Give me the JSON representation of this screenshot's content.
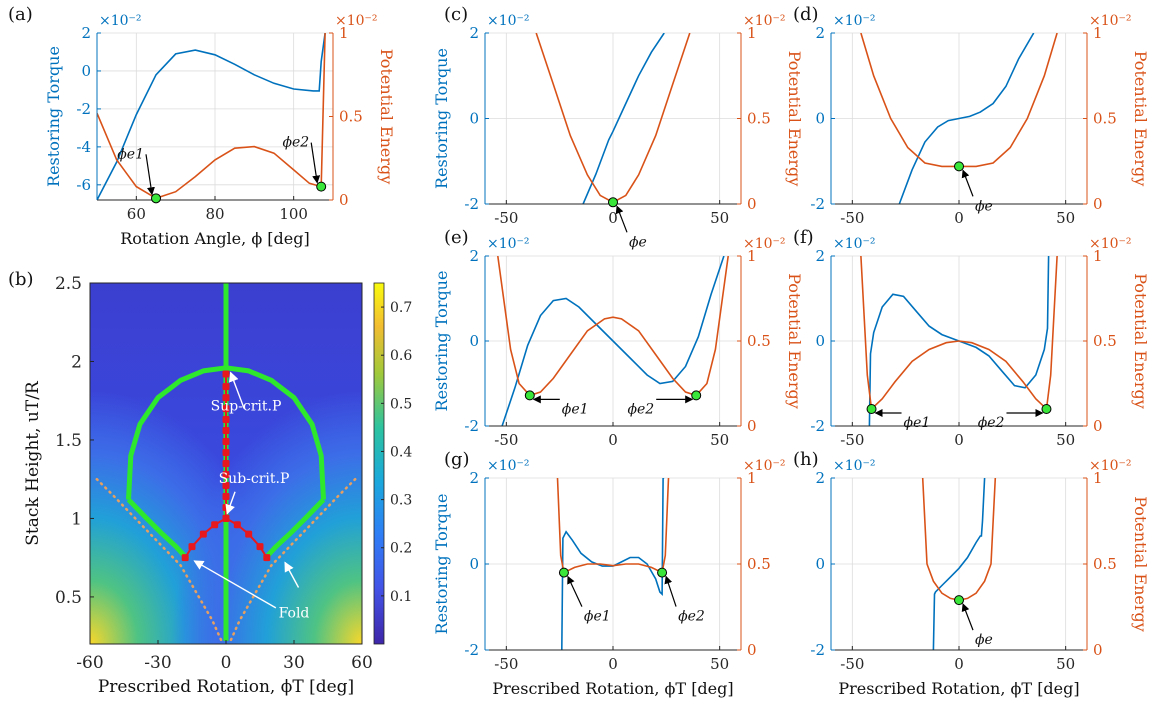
{
  "colors": {
    "torque": "#0072BD",
    "energy": "#D95319",
    "marker_fill": "#39e639",
    "branch_green": "#2ee82e",
    "branch_red": "#e8191e",
    "fold_dots": "#e8a060"
  },
  "chart_data": [
    {
      "id": "a",
      "panel_label": "(a)",
      "type": "line",
      "xlabel": "Rotation Angle, ϕ [deg]",
      "ylabel_left": "Restoring Torque",
      "ylabel_right": "Potential Energy",
      "left_scale": "×10⁻²",
      "right_scale": "×10⁻²",
      "xlim": [
        50,
        110
      ],
      "ylim_left": [
        -6.8,
        2
      ],
      "ylim_right": [
        0,
        1
      ],
      "xticks": [
        60,
        80,
        100
      ],
      "yticks_left": [
        -6,
        -4,
        -2,
        0,
        2
      ],
      "yticks_right": [
        0,
        0.5,
        1
      ],
      "series": [
        {
          "axis": "left",
          "x": [
            50,
            55,
            60,
            65,
            70,
            75,
            80,
            85,
            90,
            95,
            100,
            105,
            106.5,
            107,
            108
          ],
          "y": [
            -6.8,
            -4.8,
            -2.3,
            -0.2,
            0.9,
            1.1,
            0.85,
            0.35,
            -0.2,
            -0.65,
            -0.95,
            -1.05,
            -1.05,
            0.5,
            2
          ]
        },
        {
          "axis": "right",
          "x": [
            50,
            55,
            60,
            65,
            70,
            75,
            80,
            85,
            90,
            95,
            100,
            104,
            107,
            108
          ],
          "y": [
            0.52,
            0.24,
            0.08,
            0.01,
            0.05,
            0.14,
            0.24,
            0.31,
            0.32,
            0.28,
            0.18,
            0.1,
            0.08,
            1.0
          ]
        }
      ],
      "markers": [
        {
          "x": 65,
          "y": 0.01,
          "axis": "right",
          "label": "ϕe1"
        },
        {
          "x": 107,
          "y": 0.08,
          "axis": "right",
          "label": "ϕe2"
        }
      ]
    },
    {
      "id": "b",
      "panel_label": "(b)",
      "type": "heatmap",
      "xlabel": "Prescribed Rotation, ϕT [deg]",
      "ylabel": "Stack Height, uT/R",
      "xlim": [
        -60,
        60
      ],
      "ylim": [
        0.2,
        2.5
      ],
      "xticks": [
        -60,
        -30,
        0,
        30,
        60
      ],
      "yticks": [
        0.5,
        1,
        1.5,
        2,
        2.5
      ],
      "colorbar_ticks": [
        0.1,
        0.2,
        0.3,
        0.4,
        0.5,
        0.6,
        0.7
      ],
      "colorbar_range": [
        0,
        0.75
      ],
      "stable_branches": [
        {
          "x": [
            0,
            0
          ],
          "y": [
            0.22,
            2.5
          ]
        },
        {
          "x": [
            -43,
            -42,
            -38,
            -30,
            -20,
            -10,
            0,
            10,
            20,
            30,
            38,
            42,
            43
          ],
          "y": [
            1.12,
            1.4,
            1.6,
            1.77,
            1.88,
            1.94,
            1.96,
            1.94,
            1.88,
            1.77,
            1.6,
            1.4,
            1.12
          ]
        },
        {
          "x": [
            -43,
            -35,
            -28,
            -22,
            -17
          ],
          "y": [
            1.12,
            1.0,
            0.9,
            0.82,
            0.74
          ]
        },
        {
          "x": [
            43,
            35,
            28,
            22,
            17
          ],
          "y": [
            1.12,
            1.0,
            0.9,
            0.82,
            0.74
          ]
        }
      ],
      "unstable_branches": [
        {
          "x": [
            0,
            0,
            0,
            0,
            0,
            0,
            0,
            0,
            0,
            0,
            0,
            0,
            0,
            0
          ],
          "y": [
            1.0,
            1.07,
            1.14,
            1.21,
            1.28,
            1.35,
            1.42,
            1.49,
            1.56,
            1.63,
            1.7,
            1.77,
            1.84,
            1.92
          ]
        },
        {
          "x": [
            0,
            -5,
            -10,
            -15,
            -18
          ],
          "y": [
            1.0,
            0.96,
            0.9,
            0.82,
            0.75
          ]
        },
        {
          "x": [
            0,
            5,
            10,
            15,
            18
          ],
          "y": [
            1.0,
            0.96,
            0.9,
            0.82,
            0.75
          ]
        }
      ],
      "fold_lines": [
        {
          "x": [
            -57,
            -50,
            -40,
            -30,
            -20,
            -12,
            -6,
            -2
          ],
          "y": [
            1.25,
            1.15,
            1.0,
            0.85,
            0.7,
            0.5,
            0.35,
            0.22
          ]
        },
        {
          "x": [
            57,
            50,
            40,
            30,
            20,
            12,
            6,
            2
          ],
          "y": [
            1.25,
            1.15,
            1.0,
            0.85,
            0.7,
            0.5,
            0.35,
            0.22
          ]
        }
      ],
      "annotations": [
        "Sup-crit.P",
        "Sub-crit.P",
        "Fold"
      ]
    },
    {
      "id": "c",
      "panel_label": "(c)",
      "type": "line",
      "ylabel_left": "Restoring Torque",
      "ylabel_right": "Potential Energy",
      "left_scale": "×10⁻²",
      "right_scale": "×10⁻²",
      "xlim": [
        -60,
        60
      ],
      "ylim_left": [
        -2,
        2
      ],
      "ylim_right": [
        0,
        1
      ],
      "xticks": [
        -50,
        0,
        50
      ],
      "yticks_left": [
        -2,
        0,
        2
      ],
      "yticks_right": [
        0,
        0.5,
        1
      ],
      "series": [
        {
          "axis": "left",
          "x": [
            -14,
            -8,
            -2,
            0,
            6,
            12,
            18,
            24
          ],
          "y": [
            -2,
            -1.3,
            -0.5,
            -0.3,
            0.35,
            1.0,
            1.55,
            2
          ]
        },
        {
          "axis": "right",
          "x": [
            -36,
            -28,
            -20,
            -12,
            -6,
            0,
            6,
            12,
            20,
            28,
            36
          ],
          "y": [
            1.0,
            0.7,
            0.4,
            0.17,
            0.05,
            0.01,
            0.05,
            0.17,
            0.4,
            0.7,
            1.0
          ]
        }
      ],
      "markers": [
        {
          "x": 0,
          "y": 0.01,
          "axis": "right",
          "label": "ϕe"
        }
      ]
    },
    {
      "id": "d",
      "panel_label": "(d)",
      "type": "line",
      "ylabel_right": "Potential Energy",
      "left_scale": "×10⁻²",
      "right_scale": "×10⁻²",
      "xlim": [
        -60,
        60
      ],
      "ylim_left": [
        -2,
        2
      ],
      "ylim_right": [
        0,
        1
      ],
      "xticks": [
        -50,
        0,
        50
      ],
      "yticks_left": [
        -2,
        0,
        2
      ],
      "yticks_right": [
        0,
        0.5,
        1
      ],
      "series": [
        {
          "axis": "left",
          "x": [
            -28,
            -22,
            -16,
            -10,
            -5,
            0,
            5,
            10,
            16,
            22,
            28,
            35
          ],
          "y": [
            -2,
            -1.2,
            -0.55,
            -0.2,
            -0.05,
            0,
            0.05,
            0.15,
            0.35,
            0.75,
            1.4,
            2
          ]
        },
        {
          "axis": "right",
          "x": [
            -46,
            -40,
            -32,
            -24,
            -16,
            -8,
            0,
            8,
            16,
            24,
            32,
            40,
            46
          ],
          "y": [
            1.0,
            0.75,
            0.5,
            0.33,
            0.24,
            0.22,
            0.22,
            0.22,
            0.24,
            0.33,
            0.5,
            0.75,
            1.0
          ]
        }
      ],
      "markers": [
        {
          "x": 0,
          "y": 0.22,
          "axis": "right",
          "label": "ϕe"
        }
      ]
    },
    {
      "id": "e",
      "panel_label": "(e)",
      "type": "line",
      "ylabel_left": "Restoring Torque",
      "ylabel_right": "Potential Energy",
      "left_scale": "×10⁻²",
      "right_scale": "×10⁻²",
      "xlim": [
        -60,
        60
      ],
      "ylim_left": [
        -2,
        2
      ],
      "ylim_right": [
        0,
        1
      ],
      "xticks": [
        -50,
        0,
        50
      ],
      "yticks_left": [
        -2,
        0,
        2
      ],
      "yticks_right": [
        0,
        0.5,
        1
      ],
      "series": [
        {
          "axis": "left",
          "x": [
            -52,
            -46,
            -40,
            -34,
            -28,
            -22,
            -16,
            -8,
            0,
            8,
            16,
            22,
            28,
            34,
            40,
            46,
            52
          ],
          "y": [
            -2,
            -1.1,
            -0.1,
            0.6,
            0.95,
            1.0,
            0.8,
            0.4,
            0,
            -0.4,
            -0.8,
            -1.0,
            -0.95,
            -0.6,
            0.1,
            1.1,
            2
          ]
        },
        {
          "axis": "right",
          "x": [
            -54,
            -48,
            -44,
            -39,
            -34,
            -28,
            -20,
            -12,
            -4,
            0,
            4,
            12,
            20,
            28,
            34,
            39,
            44,
            48,
            54
          ],
          "y": [
            1.0,
            0.45,
            0.25,
            0.18,
            0.2,
            0.28,
            0.42,
            0.56,
            0.63,
            0.64,
            0.63,
            0.56,
            0.42,
            0.28,
            0.2,
            0.18,
            0.25,
            0.45,
            1.0
          ]
        }
      ],
      "markers": [
        {
          "x": -39,
          "y": 0.18,
          "axis": "right",
          "label": "ϕe1"
        },
        {
          "x": 39,
          "y": 0.18,
          "axis": "right",
          "label": "ϕe2"
        }
      ]
    },
    {
      "id": "f",
      "panel_label": "(f)",
      "type": "line",
      "ylabel_right": "Potential Energy",
      "left_scale": "×10⁻²",
      "right_scale": "×10⁻²",
      "xlim": [
        -60,
        60
      ],
      "ylim_left": [
        -2,
        2
      ],
      "ylim_right": [
        0,
        1
      ],
      "xticks": [
        -50,
        0,
        50
      ],
      "yticks_left": [
        -2,
        0,
        2
      ],
      "yticks_right": [
        0,
        0.5,
        1
      ],
      "series": [
        {
          "axis": "left",
          "x": [
            -42,
            -41.5,
            -40,
            -36,
            -31,
            -26,
            -20,
            -14,
            -8,
            0,
            8,
            14,
            20,
            26,
            31,
            36,
            40,
            41.5,
            42
          ],
          "y": [
            -2,
            -0.3,
            0.2,
            0.8,
            1.1,
            1.05,
            0.7,
            0.35,
            0.15,
            0,
            -0.15,
            -0.35,
            -0.7,
            -1.05,
            -1.1,
            -0.8,
            -0.2,
            0.3,
            2
          ]
        },
        {
          "axis": "right",
          "x": [
            -46,
            -43,
            -41,
            -36,
            -30,
            -22,
            -14,
            -6,
            0,
            6,
            14,
            22,
            30,
            36,
            41,
            43,
            46
          ],
          "y": [
            1.0,
            0.3,
            0.1,
            0.16,
            0.26,
            0.38,
            0.45,
            0.49,
            0.5,
            0.49,
            0.45,
            0.38,
            0.26,
            0.16,
            0.1,
            0.3,
            1.0
          ]
        }
      ],
      "markers": [
        {
          "x": -41,
          "y": 0.1,
          "axis": "right",
          "label": "ϕe1"
        },
        {
          "x": 41,
          "y": 0.1,
          "axis": "right",
          "label": "ϕe2"
        }
      ]
    },
    {
      "id": "g",
      "panel_label": "(g)",
      "type": "line",
      "xlabel": "Prescribed Rotation, ϕT [deg]",
      "ylabel_left": "Restoring Torque",
      "left_scale": "×10⁻²",
      "right_scale": "×10⁻²",
      "xlim": [
        -60,
        60
      ],
      "ylim_left": [
        -2,
        2
      ],
      "ylim_right": [
        0,
        1
      ],
      "xticks": [
        -50,
        0,
        50
      ],
      "yticks_left": [
        -2,
        0,
        2
      ],
      "yticks_right": [
        0,
        0.5,
        1
      ],
      "series": [
        {
          "axis": "left",
          "x": [
            -24,
            -23.5,
            -22,
            -19,
            -15,
            -10,
            -5,
            0,
            4,
            8,
            12,
            16,
            20,
            22,
            23,
            23.5,
            24
          ],
          "y": [
            -2,
            0.6,
            0.75,
            0.55,
            0.25,
            0.05,
            -0.05,
            -0.05,
            0.05,
            0.15,
            0.15,
            0,
            -0.35,
            -0.65,
            -0.7,
            2,
            2
          ]
        },
        {
          "axis": "right",
          "x": [
            -26,
            -24.5,
            -23,
            -18,
            -12,
            -6,
            0,
            6,
            12,
            18,
            23,
            24.5,
            26
          ],
          "y": [
            1.0,
            0.55,
            0.45,
            0.48,
            0.5,
            0.5,
            0.49,
            0.5,
            0.5,
            0.48,
            0.45,
            0.55,
            1.0
          ]
        }
      ],
      "markers": [
        {
          "x": -23,
          "y": 0.45,
          "axis": "right",
          "label": "ϕe1"
        },
        {
          "x": 23,
          "y": 0.45,
          "axis": "right",
          "label": "ϕe2"
        }
      ]
    },
    {
      "id": "h",
      "panel_label": "(h)",
      "type": "line",
      "xlabel": "Prescribed Rotation, ϕT [deg]",
      "ylabel_right": "Potential Energy",
      "left_scale": "×10⁻²",
      "right_scale": "×10⁻²",
      "xlim": [
        -60,
        60
      ],
      "ylim_left": [
        -2,
        2
      ],
      "ylim_right": [
        0,
        1
      ],
      "xticks": [
        -50,
        0,
        50
      ],
      "yticks_left": [
        -2,
        0,
        2
      ],
      "yticks_right": [
        0,
        0.5,
        1
      ],
      "series": [
        {
          "axis": "left",
          "x": [
            -12,
            -11.5,
            -11,
            -8,
            -4,
            0,
            4,
            8,
            10,
            10.5,
            11,
            12
          ],
          "y": [
            -2,
            -0.7,
            -0.65,
            -0.5,
            -0.3,
            -0.1,
            0.15,
            0.5,
            0.65,
            0.65,
            1.0,
            2
          ]
        },
        {
          "axis": "right",
          "x": [
            -17,
            -15,
            -12,
            -8,
            -4,
            0,
            4,
            8,
            12,
            15,
            17
          ],
          "y": [
            1.0,
            0.5,
            0.4,
            0.33,
            0.3,
            0.29,
            0.3,
            0.33,
            0.4,
            0.5,
            1.0
          ]
        }
      ],
      "markers": [
        {
          "x": 0,
          "y": 0.29,
          "axis": "right",
          "label": "ϕe"
        }
      ]
    }
  ]
}
